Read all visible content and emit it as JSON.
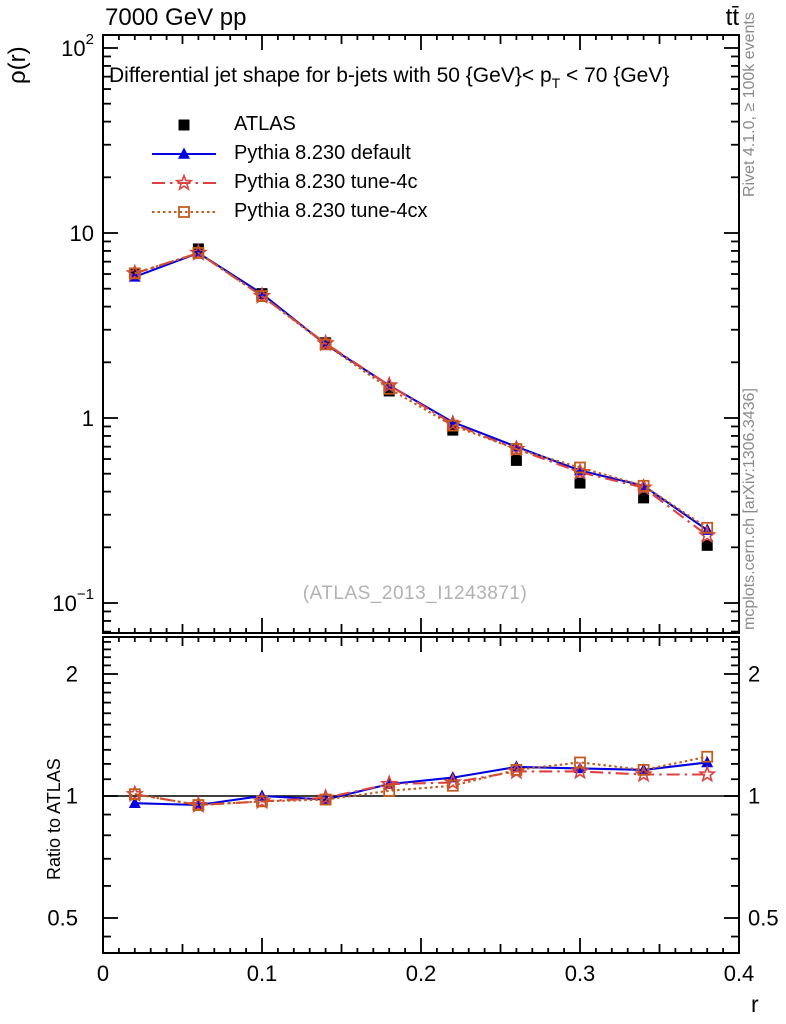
{
  "header": {
    "beam": "7000 GeV pp",
    "process": "tt̄"
  },
  "titles": {
    "y_axis": "ρ(r)",
    "plot_title_pre": "Differential jet shape for b-jets with 50 {GeV}< p",
    "plot_title_sub": "T",
    "plot_title_post": " < 70 {GeV}",
    "ratio_axis": "Ratio to ATLAS",
    "x_axis": "r",
    "watermark": "(ATLAS_2013_I1243871)"
  },
  "credits": {
    "top": "Rivet 4.1.0, ≥ 100k events",
    "bottom": "mcplots.cern.ch [arXiv:1306.3436]"
  },
  "colors": {
    "atlas": "#000000",
    "pythia_default": "#0000e0",
    "pythia_tune4c": "#dd4040",
    "pythia_tune4cx": "#c25c1e",
    "frame": "#000000",
    "credits_text": "#8a8a8a",
    "watermark_text": "#b2b2b2"
  },
  "legend": [
    {
      "label": "ATLAS",
      "marker": "filled-square",
      "line": "none",
      "color": "#000000"
    },
    {
      "label": "Pythia 8.230 default",
      "marker": "filled-triangle-up",
      "line": "solid",
      "color": "#0000e0"
    },
    {
      "label": "Pythia 8.230 tune-4c",
      "marker": "open-star",
      "line": "dashdot",
      "color": "#dd4040"
    },
    {
      "label": "Pythia 8.230 tune-4cx",
      "marker": "open-square",
      "line": "dotted",
      "color": "#c25c1e"
    }
  ],
  "chart_data": [
    {
      "type": "line",
      "panel": "main",
      "title": "Differential jet shape for b-jets with 50 {GeV}< p_T < 70 {GeV}",
      "ylabel": "ρ(r)",
      "yscale": "log",
      "ylim": [
        0.0688,
        117
      ],
      "xlim": [
        0,
        0.4
      ],
      "grid": false,
      "yticks": [
        100,
        10,
        1,
        0.1
      ],
      "ytick_labels": [
        {
          "b": "10",
          "s": "2"
        },
        {
          "b": "10"
        },
        {
          "b": "1"
        },
        {
          "b": "10",
          "s": "−1"
        }
      ],
      "x": [
        0.02,
        0.06,
        0.1,
        0.14,
        0.18,
        0.22,
        0.26,
        0.3,
        0.34,
        0.38
      ],
      "series": [
        {
          "name": "ATLAS",
          "marker": "filled-square",
          "line": "none",
          "color": "#000000",
          "values": [
            6.0,
            8.2,
            4.7,
            2.55,
            1.4,
            0.86,
            0.59,
            0.445,
            0.37,
            0.205
          ]
        },
        {
          "name": "Pythia 8.230 default",
          "marker": "filled-triangle-up",
          "line": "solid",
          "color": "#0000e0",
          "values": [
            5.8,
            7.8,
            4.7,
            2.5,
            1.5,
            0.95,
            0.7,
            0.52,
            0.43,
            0.248
          ]
        },
        {
          "name": "Pythia 8.230 tune-4c",
          "marker": "open-star",
          "line": "dashdot",
          "color": "#dd4040",
          "values": [
            6.05,
            7.8,
            4.56,
            2.53,
            1.5,
            0.93,
            0.68,
            0.51,
            0.42,
            0.232
          ]
        },
        {
          "name": "Pythia 8.230 tune-4cx",
          "marker": "open-square",
          "line": "dotted",
          "color": "#c25c1e",
          "values": [
            6.05,
            7.8,
            4.56,
            2.5,
            1.44,
            0.91,
            0.68,
            0.54,
            0.43,
            0.255
          ]
        }
      ]
    },
    {
      "type": "line",
      "panel": "ratio",
      "ylabel": "Ratio to ATLAS",
      "xlabel": "r",
      "yscale": "log",
      "ylim": [
        0.405,
        2.47
      ],
      "xlim": [
        0,
        0.4
      ],
      "grid": false,
      "reference_line": 1,
      "yticks": [
        2,
        1,
        0.5
      ],
      "ytick_labels": [
        "2",
        "1",
        "0.5"
      ],
      "yticks_minor": [
        2.4,
        2.3,
        2.2,
        2.1,
        1.9,
        1.8,
        1.7,
        1.6,
        1.5,
        1.4,
        1.3,
        1.2,
        1.1,
        0.9,
        0.8,
        0.7,
        0.6,
        0.45
      ],
      "xticks": [
        0,
        0.1,
        0.2,
        0.3,
        0.4
      ],
      "xtick_labels": [
        "0",
        "0.1",
        "0.2",
        "0.3",
        "0.4"
      ],
      "x": [
        0.02,
        0.06,
        0.1,
        0.14,
        0.18,
        0.22,
        0.26,
        0.3,
        0.34,
        0.38
      ],
      "series": [
        {
          "name": "Pythia 8.230 default",
          "marker": "filled-triangle-up",
          "line": "solid",
          "color": "#0000e0",
          "values": [
            0.96,
            0.95,
            1.0,
            0.98,
            1.07,
            1.11,
            1.18,
            1.17,
            1.16,
            1.21
          ]
        },
        {
          "name": "Pythia 8.230 tune-4c",
          "marker": "open-star",
          "line": "dashdot",
          "color": "#dd4040",
          "values": [
            1.01,
            0.95,
            0.97,
            0.99,
            1.07,
            1.08,
            1.15,
            1.15,
            1.13,
            1.13
          ]
        },
        {
          "name": "Pythia 8.230 tune-4cx",
          "marker": "open-square",
          "line": "dotted",
          "color": "#c25c1e",
          "values": [
            1.01,
            0.95,
            0.97,
            0.98,
            1.03,
            1.06,
            1.16,
            1.21,
            1.16,
            1.25
          ]
        }
      ]
    }
  ]
}
